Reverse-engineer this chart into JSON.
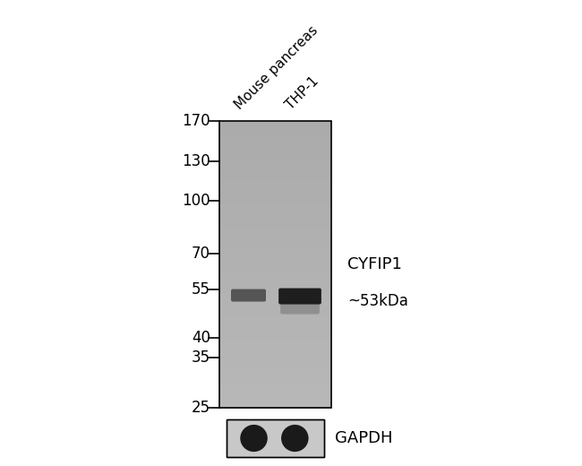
{
  "bg_color": "#ffffff",
  "gel_color": "#aaaaaa",
  "mw_labels": [
    "170",
    "130",
    "100",
    "70",
    "55",
    "40",
    "35",
    "25"
  ],
  "mw_values": [
    170,
    130,
    100,
    70,
    55,
    40,
    35,
    25
  ],
  "lane_labels": [
    "Mouse pancreas",
    "THP-1"
  ],
  "protein_label": "CYFIP1",
  "kda_label": "~53kDa",
  "gapdh_label": "GAPDH",
  "band_kda": 53,
  "font_size_mw": 12,
  "font_size_lane": 11,
  "font_size_protein": 13,
  "font_size_kda": 12,
  "font_size_gapdh": 13
}
